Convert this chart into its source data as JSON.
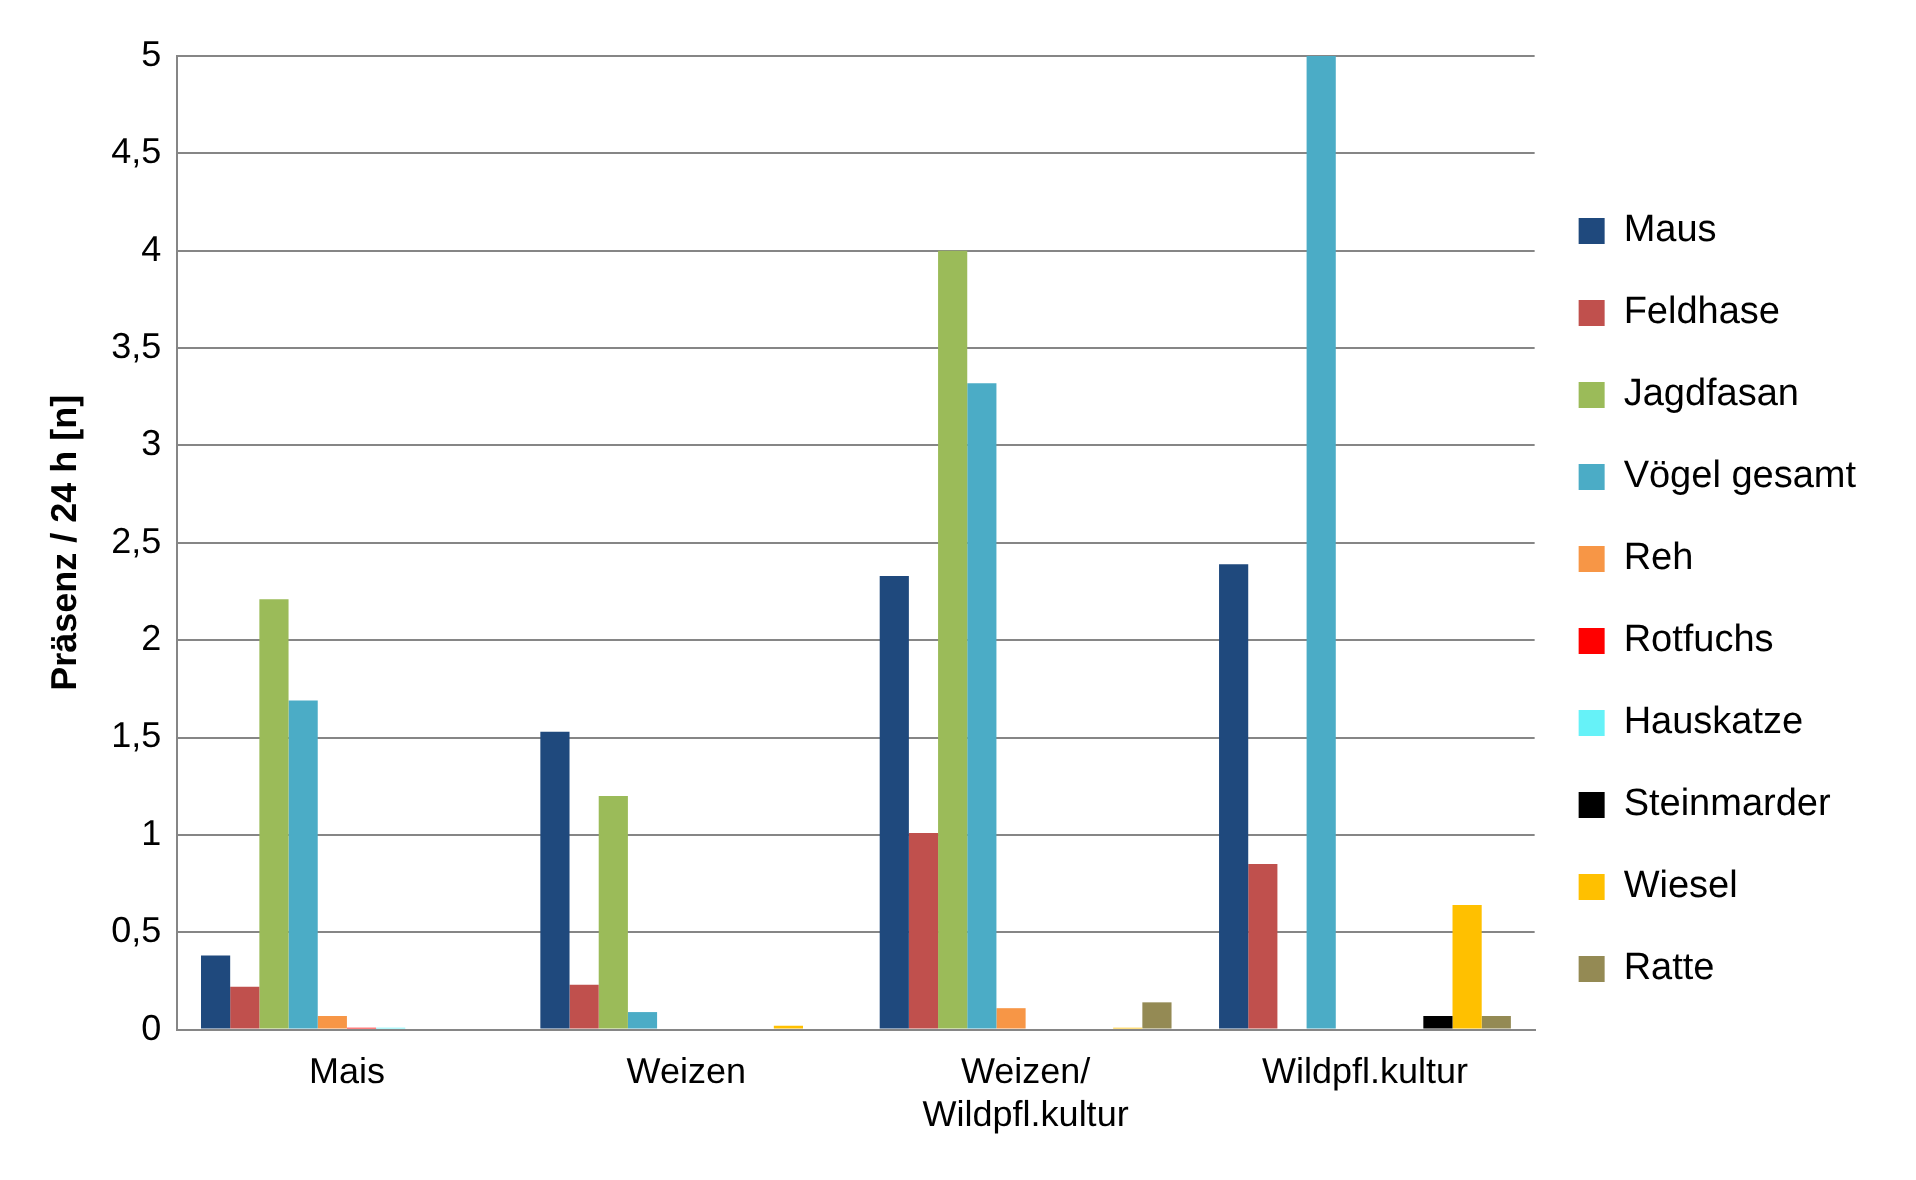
{
  "chart_data": {
    "type": "bar",
    "ylabel": "Präsenz / 24 h [n]",
    "categories": [
      "Mais",
      "Weizen",
      "Weizen/\nWildpfl.kultur",
      "Wildpfl.kultur"
    ],
    "series": [
      {
        "name": "Maus",
        "color": "#1f497d",
        "values": [
          0.38,
          1.53,
          2.33,
          2.39
        ]
      },
      {
        "name": "Feldhase",
        "color": "#c0504d",
        "values": [
          0.22,
          0.23,
          1.01,
          0.85
        ]
      },
      {
        "name": "Jagdfasan",
        "color": "#9bbb59",
        "values": [
          2.21,
          1.2,
          4.0,
          0
        ]
      },
      {
        "name": "Vögel gesamt",
        "color": "#4bacc6",
        "values": [
          1.69,
          0.09,
          3.32,
          5.0
        ]
      },
      {
        "name": "Reh",
        "color": "#f79646",
        "values": [
          0.07,
          0,
          0.11,
          0
        ]
      },
      {
        "name": "Rotfuchs",
        "color": "#ff0000",
        "values": [
          0.01,
          0,
          0,
          0
        ]
      },
      {
        "name": "Hauskatze",
        "color": "#66f2f8",
        "values": [
          0.01,
          0,
          0,
          0
        ]
      },
      {
        "name": "Steinmarder",
        "color": "#000000",
        "values": [
          0,
          0,
          0,
          0.07
        ]
      },
      {
        "name": "Wiesel",
        "color": "#ffc000",
        "values": [
          0,
          0.02,
          0.01,
          0.64
        ]
      },
      {
        "name": "Ratte",
        "color": "#948a54",
        "values": [
          0,
          0,
          0.14,
          0.07
        ]
      }
    ],
    "ylim": [
      0,
      5
    ],
    "yticks": [
      0,
      {
        "value": 0.5,
        "label": "0,5"
      },
      1,
      {
        "value": 1.5,
        "label": "1,5"
      },
      2,
      {
        "value": 2.5,
        "label": "2,5"
      },
      3,
      {
        "value": 3.5,
        "label": "3,5"
      },
      4,
      {
        "value": 4.5,
        "label": "4,5"
      },
      5
    ],
    "grid": "y",
    "legend": "right"
  }
}
